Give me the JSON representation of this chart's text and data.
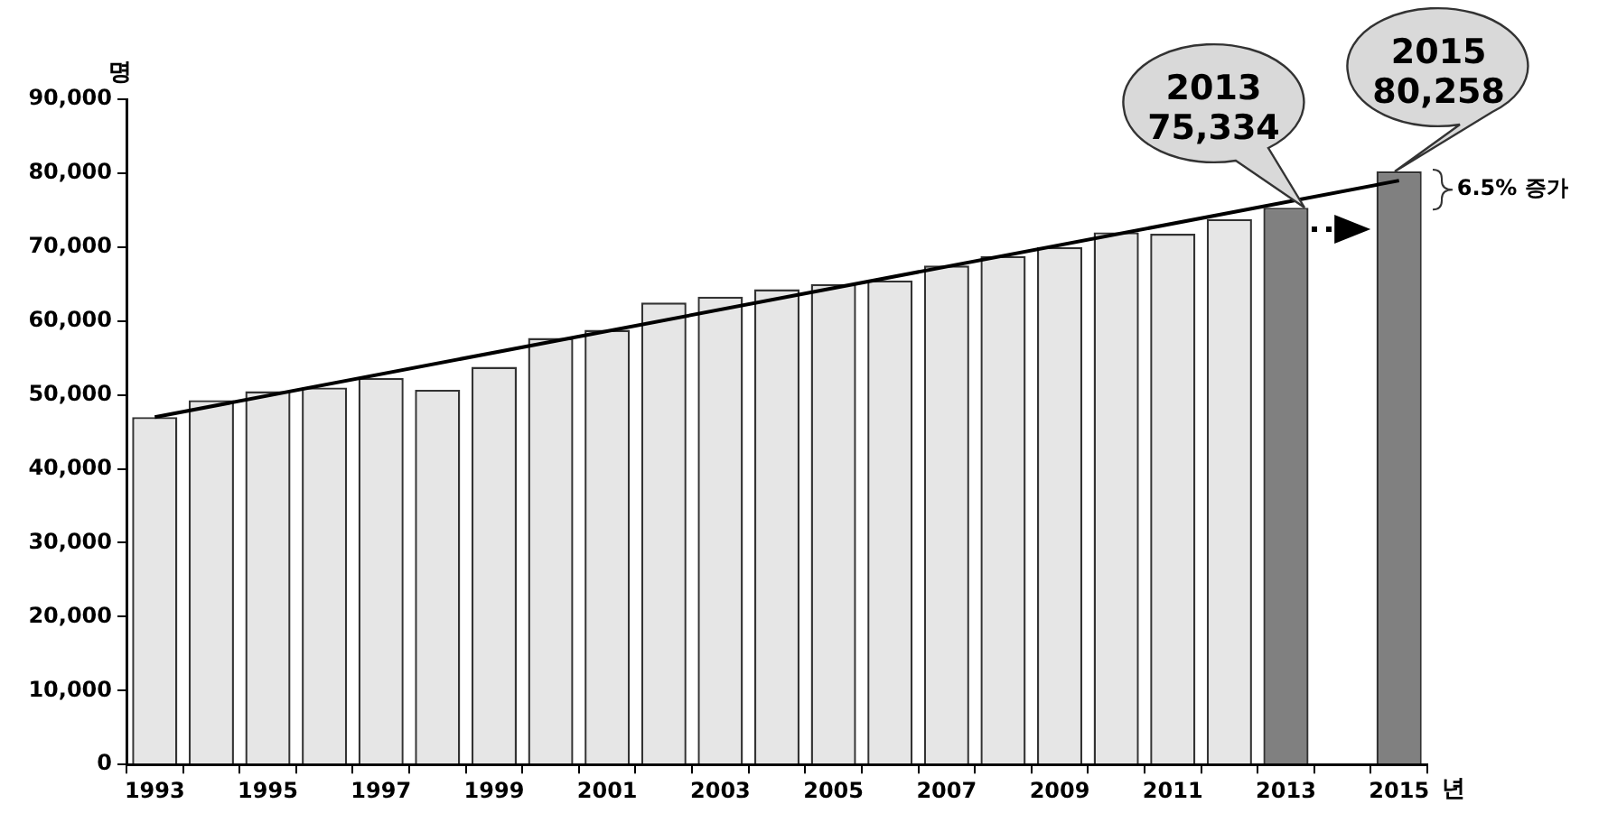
{
  "chart_data": {
    "type": "bar",
    "xlabel": "년",
    "ylabel": "명",
    "categories": [
      "1993",
      null,
      "1995",
      null,
      "1997",
      null,
      "1999",
      null,
      "2001",
      null,
      "2003",
      null,
      "2005",
      null,
      "2007",
      null,
      "2009",
      null,
      "2011",
      null,
      "2013",
      null,
      "2015"
    ],
    "series": [
      {
        "colors": [
          "#e6e6e6",
          "#e6e6e6",
          "#e6e6e6",
          "#e6e6e6",
          "#e6e6e6",
          "#e6e6e6",
          "#e6e6e6",
          "#e6e6e6",
          "#e6e6e6",
          "#e6e6e6",
          "#e6e6e6",
          "#e6e6e6",
          "#e6e6e6",
          "#e6e6e6",
          "#e6e6e6",
          "#e6e6e6",
          "#e6e6e6",
          "#e6e6e6",
          "#e6e6e6",
          "#e6e6e6",
          "#808080",
          null,
          "#808080"
        ],
        "values": [
          47000,
          49300,
          50500,
          51000,
          52300,
          50700,
          53800,
          57700,
          58800,
          62500,
          63300,
          64300,
          65000,
          65500,
          67500,
          68800,
          70000,
          72000,
          71800,
          73800,
          75334,
          null,
          80258
        ]
      },
      {
        "type": "line",
        "color": "#000000",
        "values": [
          47000,
          null,
          null,
          null,
          null,
          null,
          null,
          null,
          null,
          null,
          null,
          null,
          null,
          null,
          null,
          null,
          null,
          null,
          null,
          null,
          null,
          null,
          79000
        ]
      }
    ],
    "ylim": [
      0,
      90000
    ],
    "yticks": [
      {
        "value": 0,
        "label": "0"
      },
      {
        "value": 10000,
        "label": "10,000"
      },
      {
        "value": 20000,
        "label": "20,000"
      },
      {
        "value": 30000,
        "label": "30,000"
      },
      {
        "value": 40000,
        "label": "40,000"
      },
      {
        "value": 50000,
        "label": "50,000"
      },
      {
        "value": 60000,
        "label": "60,000"
      },
      {
        "value": 70000,
        "label": "70,000"
      },
      {
        "value": 80000,
        "label": "80,000"
      },
      {
        "value": 90000,
        "label": "90,000"
      }
    ],
    "grid": false,
    "legend": false,
    "marker": "none",
    "line_style": "solid",
    "annotations": [
      {
        "text": "2013\n75,334",
        "x": "2013",
        "y": 75334
      },
      {
        "text": "2015\n80,258",
        "x": "2015",
        "y": 80258
      },
      {
        "text": "6.5% 증가",
        "x": "2015",
        "y": 77796
      }
    ]
  }
}
